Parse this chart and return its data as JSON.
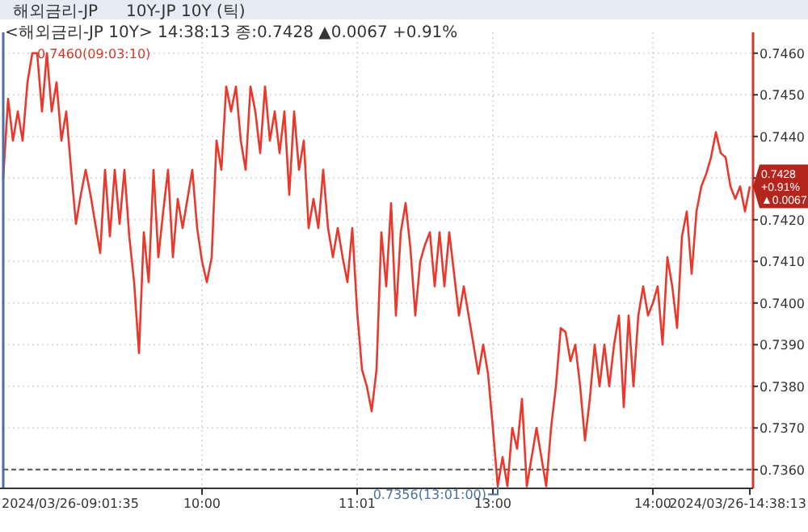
{
  "chart_data": {
    "type": "line",
    "title": "해외금리-JP",
    "subtitle": "10Y-JP 10Y (틱)",
    "categories": [
      null,
      null,
      null,
      null,
      null,
      null,
      null,
      null,
      null,
      null,
      null,
      null,
      null,
      null,
      null,
      null,
      null,
      null,
      null,
      null,
      null,
      null,
      null,
      null,
      null,
      null,
      null,
      null,
      null,
      null,
      null,
      null,
      null,
      null,
      null,
      null,
      null,
      null,
      null,
      null,
      null,
      "10:00",
      null,
      null,
      null,
      null,
      null,
      null,
      null,
      null,
      null,
      null,
      null,
      null,
      null,
      null,
      null,
      null,
      null,
      null,
      null,
      null,
      null,
      null,
      null,
      null,
      null,
      null,
      null,
      null,
      null,
      null,
      null,
      "11:01",
      null,
      null,
      null,
      null,
      null,
      null,
      null,
      null,
      null,
      null,
      null,
      null,
      null,
      null,
      null,
      null,
      null,
      null,
      null,
      null,
      null,
      null,
      null,
      null,
      null,
      null,
      null,
      "13:00",
      null,
      null,
      null,
      null,
      null,
      null,
      null,
      null,
      null,
      null,
      null,
      null,
      null,
      null,
      null,
      null,
      null,
      null,
      null,
      null,
      null,
      null,
      null,
      null,
      null,
      null,
      null,
      null,
      null,
      null,
      null,
      null,
      "14:00",
      null,
      null,
      null,
      null,
      null,
      null,
      null,
      null,
      null,
      null,
      null,
      null,
      null,
      null,
      null,
      null,
      null,
      null,
      null,
      null
    ],
    "series": [
      {
        "color": "#e8392c",
        "values": [
          0.743,
          0.7449,
          0.7439,
          0.7446,
          0.7439,
          0.7453,
          0.746,
          0.746,
          0.7446,
          0.746,
          0.7446,
          0.7453,
          0.7439,
          0.7446,
          0.7432,
          0.7419,
          0.7426,
          0.7432,
          0.7426,
          0.7419,
          0.7412,
          0.7432,
          0.7416,
          0.7432,
          0.7419,
          0.7432,
          0.7416,
          0.7405,
          0.7388,
          0.7417,
          0.7405,
          0.7432,
          0.7411,
          0.7422,
          0.7432,
          0.7411,
          0.7425,
          0.7418,
          0.7425,
          0.7432,
          0.7418,
          0.741,
          0.7405,
          0.7411,
          0.7439,
          0.7432,
          0.7452,
          0.7446,
          0.7452,
          0.7439,
          0.7432,
          0.7452,
          0.7446,
          0.7436,
          0.7452,
          0.7439,
          0.7446,
          0.7436,
          0.7446,
          0.7426,
          0.7446,
          0.7432,
          0.7439,
          0.7418,
          0.7425,
          0.7418,
          0.7432,
          0.7418,
          0.7411,
          0.7418,
          0.7411,
          0.7405,
          0.7418,
          0.7398,
          0.7384,
          0.738,
          0.7374,
          0.7384,
          0.7417,
          0.7404,
          0.7424,
          0.7397,
          0.7417,
          0.7424,
          0.7413,
          0.7397,
          0.741,
          0.7414,
          0.7417,
          0.7404,
          0.7417,
          0.7404,
          0.7417,
          0.7407,
          0.7397,
          0.7404,
          0.7397,
          0.739,
          0.7383,
          0.739,
          0.7383,
          0.737,
          0.7356,
          0.7363,
          0.7356,
          0.737,
          0.7365,
          0.7377,
          0.7356,
          0.7363,
          0.737,
          0.7363,
          0.7356,
          0.737,
          0.738,
          0.7394,
          0.7393,
          0.7386,
          0.739,
          0.738,
          0.7367,
          0.7377,
          0.739,
          0.738,
          0.739,
          0.738,
          0.739,
          0.7397,
          0.7375,
          0.7397,
          0.738,
          0.7397,
          0.7404,
          0.7397,
          0.74,
          0.7404,
          0.739,
          0.7411,
          0.7404,
          0.7394,
          0.7416,
          0.7422,
          0.7407,
          0.7422,
          0.7428,
          0.7431,
          0.7435,
          0.7441,
          0.7436,
          0.7435,
          0.7428,
          0.7425,
          0.7428,
          0.7422,
          0.7428
        ]
      }
    ],
    "ylim": [
      0.73555,
      0.7465
    ],
    "yticks": [
      {
        "value": 0.736,
        "label": "0.7360"
      },
      {
        "value": 0.737,
        "label": "0.7370"
      },
      {
        "value": 0.738,
        "label": "0.7380"
      },
      {
        "value": 0.739,
        "label": "0.7390"
      },
      {
        "value": 0.74,
        "label": "0.7400"
      },
      {
        "value": 0.741,
        "label": "0.7410"
      },
      {
        "value": 0.742,
        "label": "0.7420"
      },
      {
        "value": 0.743,
        "label": null
      },
      {
        "value": 0.744,
        "label": "0.7440"
      },
      {
        "value": 0.745,
        "label": "0.7450"
      },
      {
        "value": 0.746,
        "label": "0.7460"
      }
    ],
    "grid": true,
    "ref_lines": [
      {
        "axis": "y",
        "value": 0.736,
        "line_style": "dashed",
        "color": "#555555"
      }
    ],
    "annotations": [
      "<해외금리-JP 10Y> 14:38:13 종:0.7428 ▲0.0067 +0.91%",
      "0.7460(09:03:10)",
      "0.7356(13:01:00)",
      "0.7428 +0.91% ▲0.0067",
      "2024/03/26-09:01:35",
      "2024/03/26-14:38:13"
    ]
  }
}
